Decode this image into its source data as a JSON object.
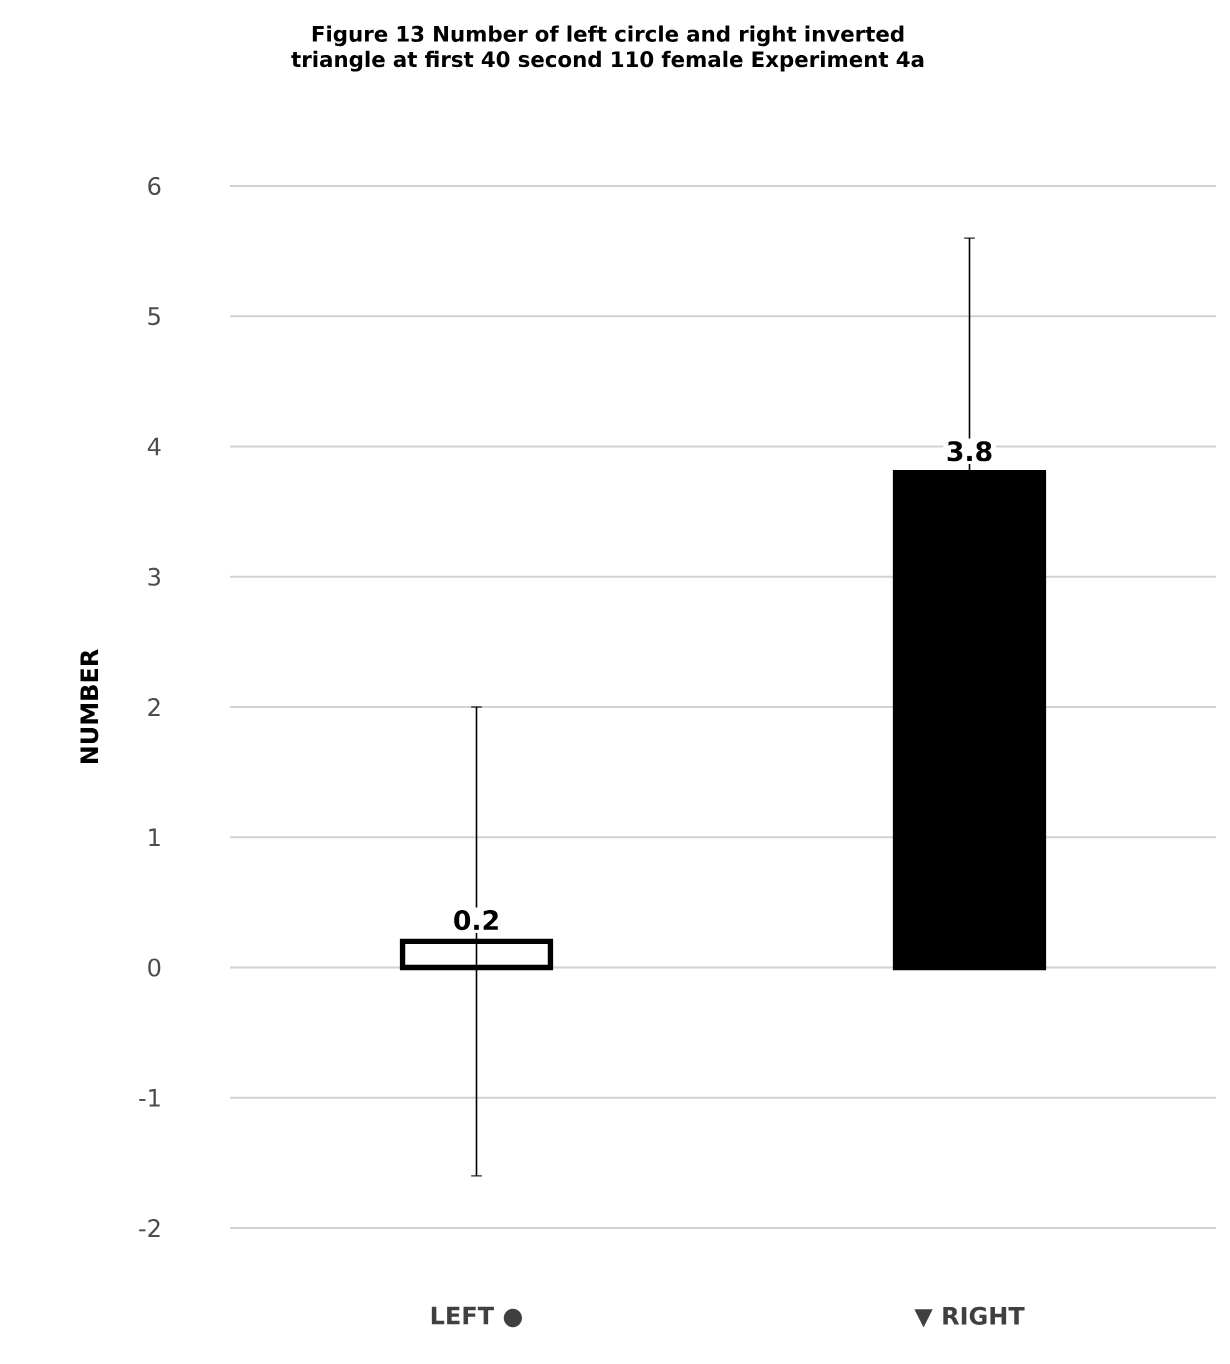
{
  "chart_data": {
    "type": "bar",
    "title": "Figure 13  Number of left circle and right inverted\ntriangle  at first 40 second 110 female  Experiment 4a",
    "ylabel": "NUMBER",
    "categories": [
      "LEFT ●",
      "▼ RIGHT"
    ],
    "values": [
      0.2,
      3.8
    ],
    "errors": [
      1.8,
      1.8
    ],
    "colors": [
      "#ffffff",
      "#000000"
    ],
    "ylim": [
      -2,
      6
    ],
    "yticks": [
      -2,
      -1,
      0,
      1,
      2,
      3,
      4,
      5,
      6
    ],
    "grid": "y",
    "data_labels": true
  }
}
